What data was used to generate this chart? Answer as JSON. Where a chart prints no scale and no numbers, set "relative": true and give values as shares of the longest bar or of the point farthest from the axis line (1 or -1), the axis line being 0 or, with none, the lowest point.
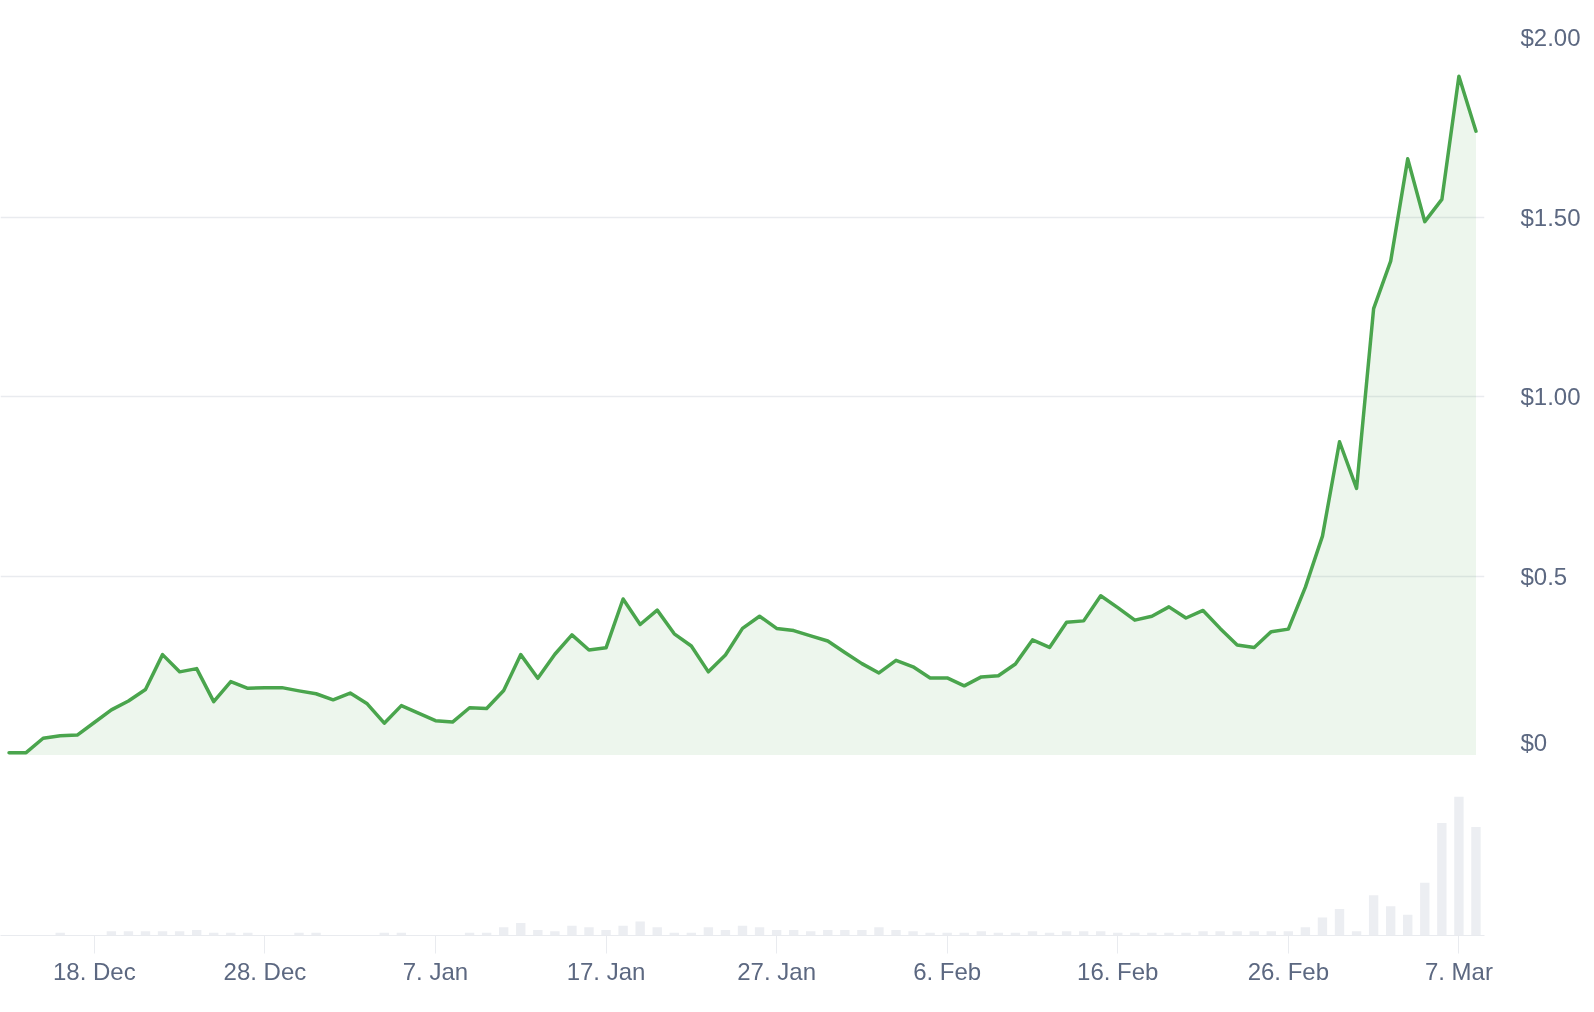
{
  "chart_data": [
    {
      "type": "area",
      "categories": [
        null,
        null,
        null,
        null,
        null,
        null,
        null,
        null,
        null,
        null,
        null,
        null,
        null,
        null,
        null,
        null,
        null,
        null,
        null,
        null,
        null,
        null,
        null,
        null,
        null,
        null,
        null,
        null,
        null,
        null,
        null,
        null,
        null,
        null,
        null,
        null,
        null,
        null,
        null,
        null,
        null,
        null,
        null,
        null,
        null,
        null,
        null,
        null,
        null,
        null,
        null,
        null,
        null,
        null,
        null,
        null,
        null,
        null,
        null,
        null,
        null,
        null,
        null,
        null,
        null,
        null,
        null,
        null,
        null,
        null,
        null,
        null,
        null,
        null,
        null,
        null,
        null,
        null,
        null,
        null,
        null,
        null,
        null,
        null,
        null,
        null,
        null
      ],
      "values": [
        0.008,
        0.008,
        0.048,
        0.055,
        0.057,
        0.092,
        0.127,
        0.152,
        0.184,
        0.281,
        0.233,
        0.242,
        0.15,
        0.206,
        0.187,
        0.189,
        0.189,
        0.18,
        0.172,
        0.155,
        0.174,
        0.144,
        0.09,
        0.139,
        0.118,
        0.097,
        0.093,
        0.133,
        0.131,
        0.181,
        0.281,
        0.215,
        0.282,
        0.336,
        0.294,
        0.3,
        0.436,
        0.365,
        0.405,
        0.339,
        0.305,
        0.233,
        0.28,
        0.354,
        0.388,
        0.354,
        0.348,
        0.333,
        0.319,
        0.287,
        0.256,
        0.23,
        0.265,
        0.247,
        0.216,
        0.216,
        0.194,
        0.219,
        0.222,
        0.255,
        0.322,
        0.301,
        0.371,
        0.375,
        0.445,
        0.412,
        0.377,
        0.388,
        0.414,
        0.383,
        0.404,
        0.354,
        0.308,
        0.301,
        0.345,
        0.352,
        0.469,
        0.611,
        0.874,
        0.744,
        1.245,
        1.377,
        1.662,
        1.487,
        1.549,
        1.892,
        1.739
      ],
      "color": "#4aa54d",
      "ylim": [
        0,
        2
      ],
      "yticks": [
        {
          "value": 0,
          "label": "$0"
        },
        {
          "value": 0.5,
          "label": "$0.5"
        },
        {
          "value": 1,
          "label": "$1.00"
        },
        {
          "value": 1.5,
          "label": "$1.50"
        },
        {
          "value": 2,
          "label": "$2.00"
        }
      ],
      "grid": "y",
      "tick_labels": "y"
    },
    {
      "type": "bar",
      "categories": [
        null,
        null,
        null,
        null,
        null,
        "18. Dec",
        null,
        null,
        null,
        null,
        null,
        null,
        null,
        null,
        null,
        "28. Dec",
        null,
        null,
        null,
        null,
        null,
        null,
        null,
        null,
        null,
        "7. Jan",
        null,
        null,
        null,
        null,
        null,
        null,
        null,
        null,
        null,
        "17. Jan",
        null,
        null,
        null,
        null,
        null,
        null,
        null,
        null,
        null,
        "27. Jan",
        null,
        null,
        null,
        null,
        null,
        null,
        null,
        null,
        null,
        "6. Feb",
        null,
        null,
        null,
        null,
        null,
        null,
        null,
        null,
        null,
        "16. Feb",
        null,
        null,
        null,
        null,
        null,
        null,
        null,
        null,
        null,
        "26. Feb",
        null,
        null,
        null,
        null,
        null,
        null,
        null,
        null,
        null,
        "7. Mar",
        null
      ],
      "values": [
        null,
        null,
        null,
        0.02,
        null,
        null,
        0.03,
        0.03,
        0.03,
        0.03,
        0.03,
        0.04,
        0.02,
        0.02,
        0.02,
        null,
        null,
        0.02,
        0.02,
        null,
        null,
        null,
        0.02,
        0.02,
        null,
        null,
        null,
        0.02,
        0.02,
        0.06,
        0.09,
        0.04,
        0.03,
        0.07,
        0.06,
        0.04,
        0.07,
        0.1,
        0.06,
        0.02,
        0.02,
        0.06,
        0.04,
        0.07,
        0.06,
        0.04,
        0.04,
        0.03,
        0.04,
        0.04,
        0.04,
        0.06,
        0.04,
        0.03,
        0.02,
        0.02,
        0.02,
        0.03,
        0.02,
        0.02,
        0.03,
        0.02,
        0.03,
        0.03,
        0.03,
        0.02,
        0.02,
        0.02,
        0.02,
        0.02,
        0.03,
        0.03,
        0.03,
        0.03,
        0.03,
        0.03,
        0.06,
        0.13,
        0.19,
        0.03,
        0.29,
        0.21,
        0.15,
        0.38,
        0.81,
        1,
        0.78
      ],
      "color": "#eceef2",
      "relative": true,
      "tick_labels": "x"
    }
  ]
}
